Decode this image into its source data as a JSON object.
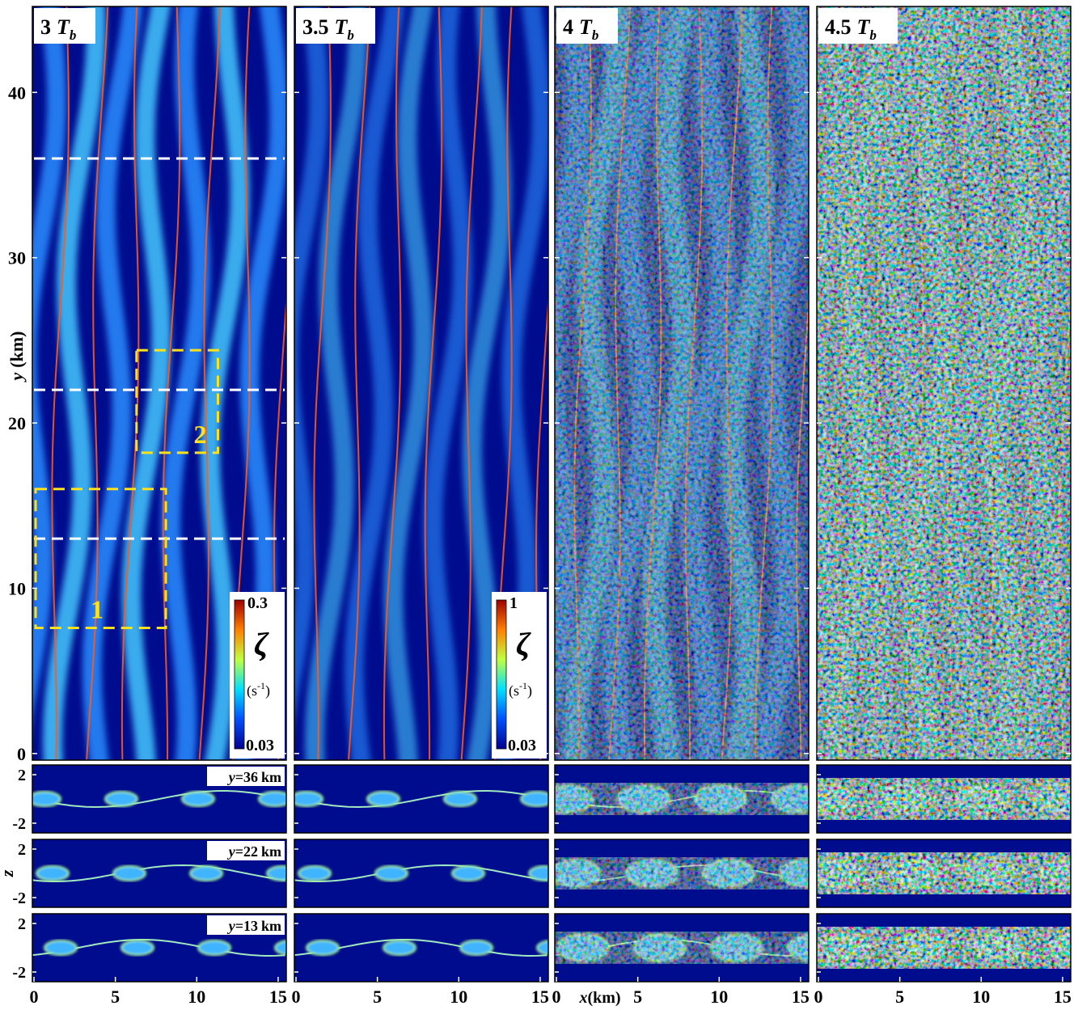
{
  "chart_data": {
    "type": "heatmap",
    "panels": [
      {
        "time": "3",
        "symbol": "T",
        "sub": "b"
      },
      {
        "time": "3.5",
        "symbol": "T",
        "sub": "b"
      },
      {
        "time": "4",
        "symbol": "T",
        "sub": "b"
      },
      {
        "time": "4.5",
        "symbol": "T",
        "sub": "b"
      }
    ],
    "ylabel": {
      "var": "y",
      "unit": "(km)"
    },
    "ylim": [
      -0.4,
      45.2
    ],
    "yticks": [
      0,
      10,
      20,
      30,
      40
    ],
    "zlabel": "z",
    "zlim": [
      -2.8,
      2.8
    ],
    "zticks": [
      2,
      -2
    ],
    "xlabel": {
      "var": "x",
      "unit": "(km)"
    },
    "xlim": [
      -0.1,
      15.5
    ],
    "xticks": [
      0,
      5,
      10,
      15
    ],
    "slices": [
      {
        "var": "y",
        "eq": "=",
        "value": 36,
        "unit": "km"
      },
      {
        "var": "y",
        "eq": "=",
        "value": 22,
        "unit": "km"
      },
      {
        "var": "y",
        "eq": "=",
        "value": 13,
        "unit": "km"
      }
    ],
    "boxes": [
      {
        "label": "1",
        "x": [
          0.1,
          8.1
        ],
        "y": [
          7.6,
          16.0
        ]
      },
      {
        "label": "2",
        "x": [
          6.3,
          11.3
        ],
        "y": [
          18.2,
          24.4
        ]
      }
    ],
    "colorbars": [
      {
        "symbol": "ζ",
        "unit": [
          "(s",
          "-1",
          ")"
        ],
        "max": 0.3,
        "min": 0.03
      },
      {
        "symbol": "ζ",
        "unit": [
          "(s",
          "-1",
          ")"
        ],
        "max": 1,
        "min": 0.03
      }
    ]
  }
}
